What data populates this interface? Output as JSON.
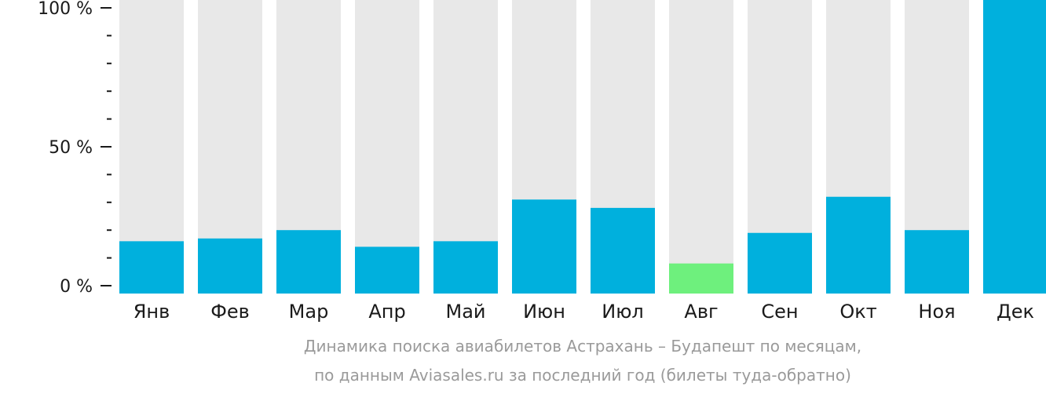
{
  "chart_data": {
    "type": "bar",
    "categories": [
      "Янв",
      "Фев",
      "Мар",
      "Апр",
      "Май",
      "Июн",
      "Июл",
      "Авг",
      "Сен",
      "Окт",
      "Ноя",
      "Дек"
    ],
    "values": [
      16,
      17,
      20,
      14,
      16,
      31,
      28,
      8,
      19,
      32,
      20,
      100
    ],
    "highlight": {
      "category": "Авг",
      "color": "#6ef07d"
    },
    "ylim": [
      0,
      100
    ],
    "yticks": [
      {
        "value": 0,
        "label": "0 %"
      },
      {
        "value": 50,
        "label": "50 %"
      },
      {
        "value": 100,
        "label": "100 %"
      }
    ],
    "minor_tick_step": 10,
    "grid": false,
    "colors": {
      "bar": "#00b0dd",
      "bar_background": "#e8e8e8",
      "axis": "#1a1a1a"
    }
  },
  "caption": {
    "line1": "Динамика поиска авиабилетов Астрахань – Будапешт по месяцам,",
    "line2": "по данным Aviasales.ru за последний год (билеты туда-обратно)"
  }
}
